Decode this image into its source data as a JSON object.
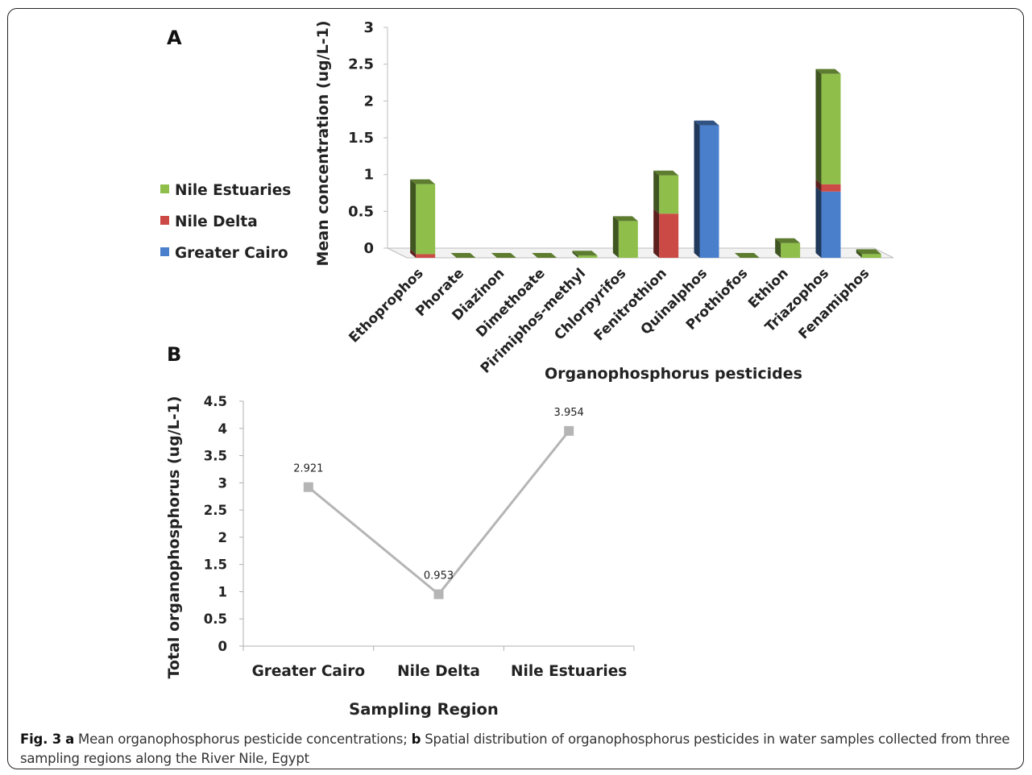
{
  "charts": [
    {
      "panel_label": "A",
      "chart_data": {
        "type": "bar",
        "stacked": true,
        "view": "3d",
        "xlabel": "Organophosphorus pesticides",
        "ylabel": "Mean concentration (ug/L-1)",
        "ylim": [
          0,
          3
        ],
        "yticks": [
          "0",
          "0.5",
          "1",
          "1.5",
          "2",
          "2.5",
          "3"
        ],
        "categories": [
          "Ethoprophos",
          "Phorate",
          "Diazinon",
          "Dimethoate",
          "Pirimiphos-methyl",
          "Chlorpyrifos",
          "Fenitrothion",
          "Quinalphos",
          "Prothiofos",
          "Ethion",
          "Triazophos",
          "Fenamiphos"
        ],
        "series": [
          {
            "name": "Greater Cairo",
            "color": "#4a7fcb",
            "values": [
              0,
              0,
              0,
              0,
              0,
              0,
              0,
              1.8,
              0,
              0,
              0.9,
              0
            ]
          },
          {
            "name": "Nile Delta",
            "color": "#cc4a45",
            "values": [
              0.05,
              0,
              0,
              0,
              0,
              0,
              0.6,
              0,
              0,
              0,
              0.1,
              0
            ]
          },
          {
            "name": "Nile Estuaries",
            "color": "#8fbf4a",
            "values": [
              0.95,
              0,
              0,
              0,
              0.03,
              0.5,
              0.52,
              0,
              0,
              0.2,
              1.5,
              0.05
            ]
          }
        ],
        "legend": [
          "Nile Estuaries",
          "Nile Delta",
          "Greater Cairo"
        ],
        "legend_position": "left",
        "grid": false
      }
    },
    {
      "panel_label": "B",
      "chart_data": {
        "type": "line",
        "xlabel": "Sampling Region",
        "ylabel": "Total organophosphorus (ug/L-1)",
        "ylim": [
          0,
          4.5
        ],
        "yticks": [
          "0",
          "0.5",
          "1",
          "1.5",
          "2",
          "2.5",
          "3",
          "3.5",
          "4",
          "4.5"
        ],
        "categories": [
          "Greater Cairo",
          "Nile Delta",
          "Nile Estuaries"
        ],
        "series": [
          {
            "color": "#b5b5b5",
            "values": [
              2.921,
              0.953,
              3.954
            ],
            "labels": [
              "2.921",
              "0.953",
              "3.954"
            ]
          }
        ],
        "grid": false
      }
    }
  ],
  "caption": {
    "fig_label": "Fig. 3",
    "part_a": "a",
    "text_a": " Mean organophosphorus pesticide concentrations; ",
    "part_b": "b",
    "text_b": " Spatial distribution of organophosphorus pesticides in water samples collected from three sampling regions along the River Nile, Egypt"
  }
}
